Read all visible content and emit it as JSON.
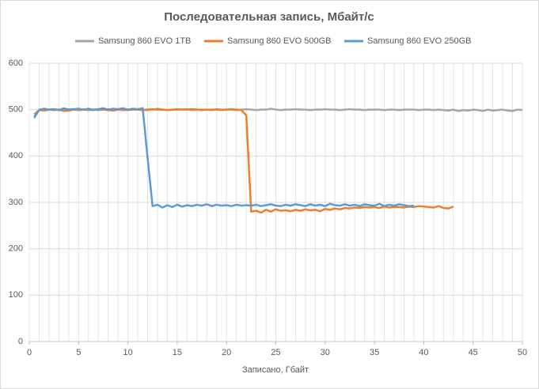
{
  "chart_data": {
    "type": "line",
    "title": "Последовательная запись, Мбайт/с",
    "x_label": "Записано, Гбайт",
    "x": [
      0.5,
      1,
      1.5,
      2,
      2.5,
      3,
      3.5,
      4,
      4.5,
      5,
      5.5,
      6,
      6.5,
      7,
      7.5,
      8,
      8.5,
      9,
      9.5,
      10,
      10.5,
      11,
      11.5,
      12,
      12.5,
      13,
      13.5,
      14,
      14.5,
      15,
      15.5,
      16,
      16.5,
      17,
      17.5,
      18,
      18.5,
      19,
      19.5,
      20,
      20.5,
      21,
      21.5,
      22,
      22.5,
      23,
      23.5,
      24,
      24.5,
      25,
      25.5,
      26,
      26.5,
      27,
      27.5,
      28,
      28.5,
      29,
      29.5,
      30,
      30.5,
      31,
      31.5,
      32,
      32.5,
      33,
      33.5,
      34,
      34.5,
      35,
      35.5,
      36,
      36.5,
      37,
      37.5,
      38,
      38.5,
      39,
      39.5,
      40,
      40.5,
      41,
      41.5,
      42,
      42.5,
      43,
      43.5,
      44,
      44.5,
      45,
      45.5,
      46,
      46.5,
      47,
      47.5,
      48,
      48.5,
      49,
      49.5,
      50
    ],
    "series": [
      {
        "name": "Samsung 860 EVO 1TB",
        "color": "#a5a5a5",
        "values": [
          485,
          499,
          500,
          500,
          501,
          499,
          500,
          501,
          500,
          499,
          500,
          501,
          500,
          499,
          500,
          501,
          500,
          500,
          499,
          500,
          501,
          500,
          500,
          499,
          500,
          502,
          500,
          499,
          500,
          500,
          500,
          501,
          499,
          500,
          500,
          500,
          499,
          501,
          500,
          500,
          500,
          499,
          500,
          501,
          500,
          499,
          500,
          500,
          502,
          500,
          499,
          500,
          500,
          501,
          500,
          500,
          499,
          500,
          500,
          501,
          500,
          500,
          499,
          500,
          501,
          500,
          500,
          499,
          500,
          500,
          500,
          499,
          500,
          500,
          499,
          500,
          500,
          500,
          499,
          500,
          500,
          499,
          500,
          499,
          498,
          500,
          497,
          499,
          498,
          500,
          499,
          497,
          500,
          498,
          499,
          500,
          498,
          497,
          500,
          499
        ]
      },
      {
        "name": "Samsung 860 EVO 500GB",
        "color": "#ed7d31",
        "values": [
          490,
          499,
          498,
          500,
          499,
          500,
          497,
          498,
          500,
          499,
          500,
          499,
          500,
          501,
          500,
          499,
          498,
          500,
          500,
          499,
          500,
          500,
          499,
          500,
          501,
          500,
          500,
          499,
          500,
          501,
          500,
          500,
          501,
          500,
          499,
          500,
          500,
          500,
          499,
          500,
          501,
          500,
          499,
          488,
          280,
          282,
          278,
          284,
          280,
          285,
          282,
          283,
          281,
          284,
          282,
          285,
          283,
          284,
          281,
          286,
          284,
          287,
          285,
          288,
          287,
          289,
          288,
          290,
          289,
          290,
          288,
          291,
          289,
          290,
          290,
          289,
          291,
          290,
          292,
          291,
          290,
          289,
          292,
          288,
          287,
          291,
          null,
          null,
          null,
          null,
          null,
          null,
          null,
          null,
          null,
          null,
          null,
          null,
          null,
          null
        ]
      },
      {
        "name": "Samsung 860 EVO 250GB",
        "color": "#5b9bd5",
        "values": [
          482,
          500,
          502,
          500,
          501,
          499,
          503,
          500,
          501,
          502,
          500,
          502,
          499,
          501,
          503,
          500,
          502,
          501,
          503,
          500,
          502,
          501,
          503,
          395,
          292,
          295,
          289,
          294,
          290,
          295,
          291,
          294,
          292,
          295,
          293,
          296,
          292,
          295,
          293,
          294,
          292,
          295,
          293,
          294,
          293,
          295,
          292,
          294,
          296,
          293,
          292,
          295,
          293,
          296,
          294,
          292,
          296,
          293,
          295,
          292,
          297,
          294,
          293,
          296,
          293,
          295,
          292,
          296,
          294,
          293,
          297,
          292,
          295,
          293,
          296,
          294,
          292,
          293,
          null,
          null,
          null,
          null,
          null,
          null,
          null,
          null,
          null,
          null,
          null,
          null,
          null,
          null,
          null,
          null,
          null,
          null,
          null,
          null,
          null,
          null
        ]
      }
    ],
    "xlim": [
      0,
      50
    ],
    "xticks": [
      0,
      5,
      10,
      15,
      20,
      25,
      30,
      35,
      40,
      45,
      50
    ],
    "x_minor_grid": 1,
    "ylim": [
      0,
      600
    ],
    "yticks": [
      0,
      100,
      200,
      300,
      400,
      500,
      600
    ],
    "grid": true,
    "legend": "top"
  }
}
